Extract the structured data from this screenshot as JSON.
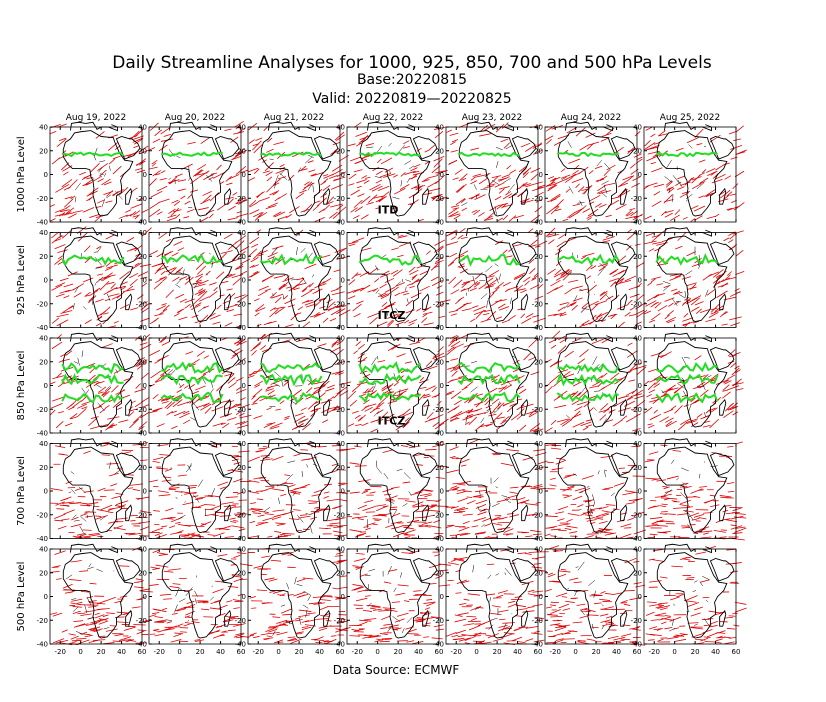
{
  "title": "Daily Streamline Analyses for 1000, 925, 850, 700 and 500 hPa Levels",
  "base": "Base:20220815",
  "valid": "Valid: 20220819—20220825",
  "columns": [
    "Aug 19, 2022",
    "Aug 20, 2022",
    "Aug 21, 2022",
    "Aug 22, 2022",
    "Aug 23, 2022",
    "Aug 24, 2022",
    "Aug 25, 2022"
  ],
  "rows": [
    {
      "label": "1000 hPa Level",
      "annotation": "ITD"
    },
    {
      "label": "925 hPa Level",
      "annotation": "ITCZ"
    },
    {
      "label": "850 hPa Level",
      "annotation": "ITCZ"
    },
    {
      "label": "700 hPa Level"
    },
    {
      "label": "500 hPa Level"
    }
  ],
  "axes": {
    "xlim": [
      -30,
      60
    ],
    "ylim": [
      -40,
      40
    ],
    "xticks": [
      -20,
      0,
      20,
      40,
      60
    ],
    "yticks": [
      -40,
      -20,
      0,
      20,
      40
    ]
  },
  "source": "Data Source: ECMWF"
}
